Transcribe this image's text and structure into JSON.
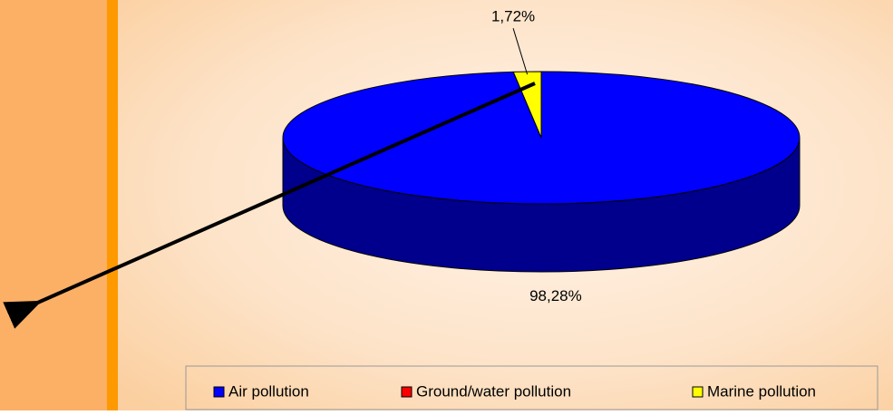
{
  "chart_data": {
    "type": "pie",
    "categories": [
      "Air pollution",
      "Ground/water pollution",
      "Marine pollution"
    ],
    "values": [
      98.28,
      0,
      1.72
    ],
    "value_labels": [
      "98,28%",
      null,
      "1,72%"
    ],
    "colors": [
      "#0000ff",
      "#ff0000",
      "#ffff00"
    ],
    "legend": "bottom"
  }
}
